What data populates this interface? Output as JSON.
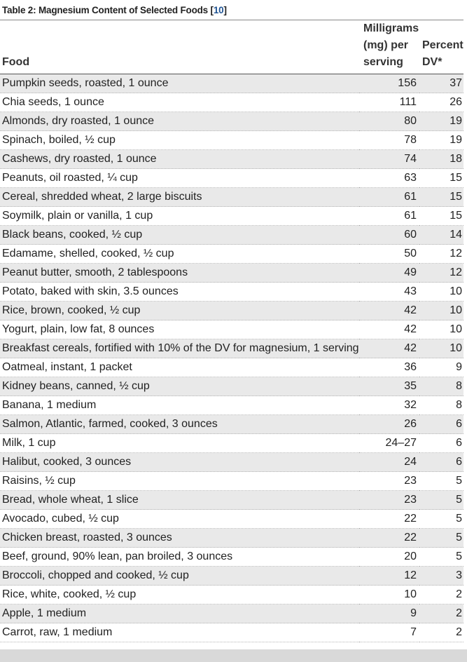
{
  "table": {
    "caption": "Table 2: Magnesium Content of Selected Foods",
    "caption_ref": "10",
    "headers": {
      "food": "Food",
      "milligrams": "Milligrams (mg) per serving",
      "percent_dv": "Percent DV*"
    },
    "rows": [
      {
        "food": "Pumpkin seeds, roasted, 1 ounce",
        "mg": "156",
        "dv": "37"
      },
      {
        "food": "Chia seeds, 1 ounce",
        "mg": "111",
        "dv": "26"
      },
      {
        "food": "Almonds, dry roasted, 1 ounce",
        "mg": "80",
        "dv": "19"
      },
      {
        "food": "Spinach, boiled, ½ cup",
        "mg": "78",
        "dv": "19"
      },
      {
        "food": "Cashews, dry roasted, 1 ounce",
        "mg": "74",
        "dv": "18"
      },
      {
        "food": "Peanuts, oil roasted, ¼ cup",
        "mg": "63",
        "dv": "15"
      },
      {
        "food": "Cereal, shredded wheat, 2 large biscuits",
        "mg": "61",
        "dv": "15"
      },
      {
        "food": "Soymilk, plain or vanilla, 1 cup",
        "mg": "61",
        "dv": "15"
      },
      {
        "food": "Black beans, cooked, ½ cup",
        "mg": "60",
        "dv": "14"
      },
      {
        "food": "Edamame, shelled, cooked, ½ cup",
        "mg": "50",
        "dv": "12"
      },
      {
        "food": "Peanut butter, smooth, 2 tablespoons",
        "mg": "49",
        "dv": "12"
      },
      {
        "food": "Potato, baked with skin, 3.5 ounces",
        "mg": "43",
        "dv": "10"
      },
      {
        "food": "Rice, brown, cooked, ½ cup",
        "mg": "42",
        "dv": "10"
      },
      {
        "food": "Yogurt, plain, low fat, 8 ounces",
        "mg": "42",
        "dv": "10"
      },
      {
        "food": "Breakfast cereals, fortified with 10% of the DV for magnesium, 1 serving",
        "mg": "42",
        "dv": "10"
      },
      {
        "food": "Oatmeal, instant, 1 packet",
        "mg": "36",
        "dv": "9"
      },
      {
        "food": "Kidney beans, canned, ½ cup",
        "mg": "35",
        "dv": "8"
      },
      {
        "food": "Banana, 1 medium",
        "mg": "32",
        "dv": "8"
      },
      {
        "food": "Salmon, Atlantic, farmed, cooked, 3 ounces",
        "mg": "26",
        "dv": "6"
      },
      {
        "food": "Milk, 1 cup",
        "mg": "24–27",
        "dv": "6"
      },
      {
        "food": "Halibut, cooked, 3 ounces",
        "mg": "24",
        "dv": "6"
      },
      {
        "food": "Raisins, ½ cup",
        "mg": "23",
        "dv": "5"
      },
      {
        "food": "Bread, whole wheat, 1 slice",
        "mg": "23",
        "dv": "5"
      },
      {
        "food": "Avocado, cubed, ½ cup",
        "mg": "22",
        "dv": "5"
      },
      {
        "food": "Chicken breast, roasted, 3 ounces",
        "mg": "22",
        "dv": "5"
      },
      {
        "food": "Beef, ground, 90% lean, pan broiled, 3 ounces",
        "mg": "20",
        "dv": "5"
      },
      {
        "food": "Broccoli, chopped and cooked, ½ cup",
        "mg": "12",
        "dv": "3"
      },
      {
        "food": "Rice, white, cooked, ½ cup",
        "mg": "10",
        "dv": "2"
      },
      {
        "food": "Apple, 1 medium",
        "mg": "9",
        "dv": "2"
      },
      {
        "food": "Carrot, raw, 1 medium",
        "mg": "7",
        "dv": "2"
      }
    ]
  },
  "colors": {
    "stripe": "#e9e9e9",
    "link": "#205493",
    "footer_band": "#d9d9d9"
  }
}
